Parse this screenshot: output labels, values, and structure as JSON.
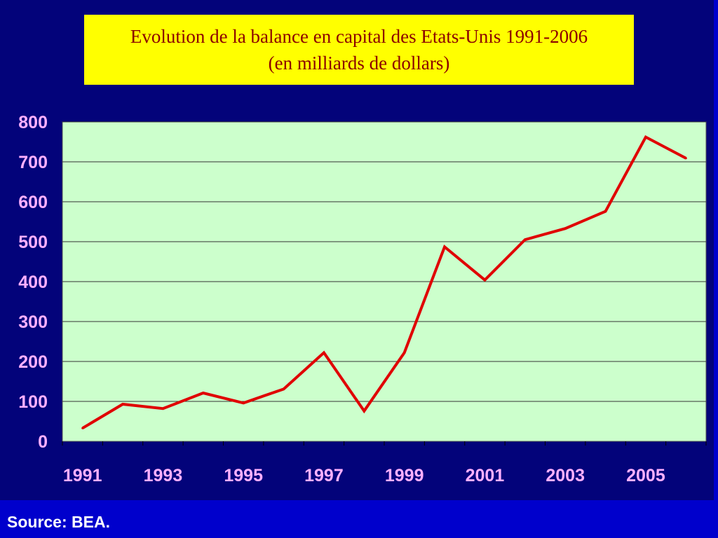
{
  "chart_data": {
    "type": "line",
    "title": "Evolution de la balance en capital des Etats-Unis 1991-2006",
    "subtitle": "(en milliards de dollars)",
    "x": [
      1991,
      1992,
      1993,
      1994,
      1995,
      1996,
      1997,
      1998,
      1999,
      2000,
      2001,
      2002,
      2003,
      2004,
      2005,
      2006
    ],
    "x_tick_labels": [
      "1991",
      "1993",
      "1995",
      "1997",
      "1999",
      "2001",
      "2003",
      "2005"
    ],
    "y_tick_labels": [
      "800",
      "700",
      "600",
      "500",
      "400",
      "300",
      "200",
      "100",
      "0"
    ],
    "series": [
      {
        "values": [
          33,
          93,
          82,
          121,
          96,
          131,
          222,
          76,
          222,
          487,
          404,
          505,
          533,
          576,
          762,
          709
        ],
        "color": "#e00000"
      }
    ],
    "ylim": [
      0,
      800
    ],
    "grid": true,
    "plot_background": "#ccffcc"
  },
  "source": "Source: BEA."
}
